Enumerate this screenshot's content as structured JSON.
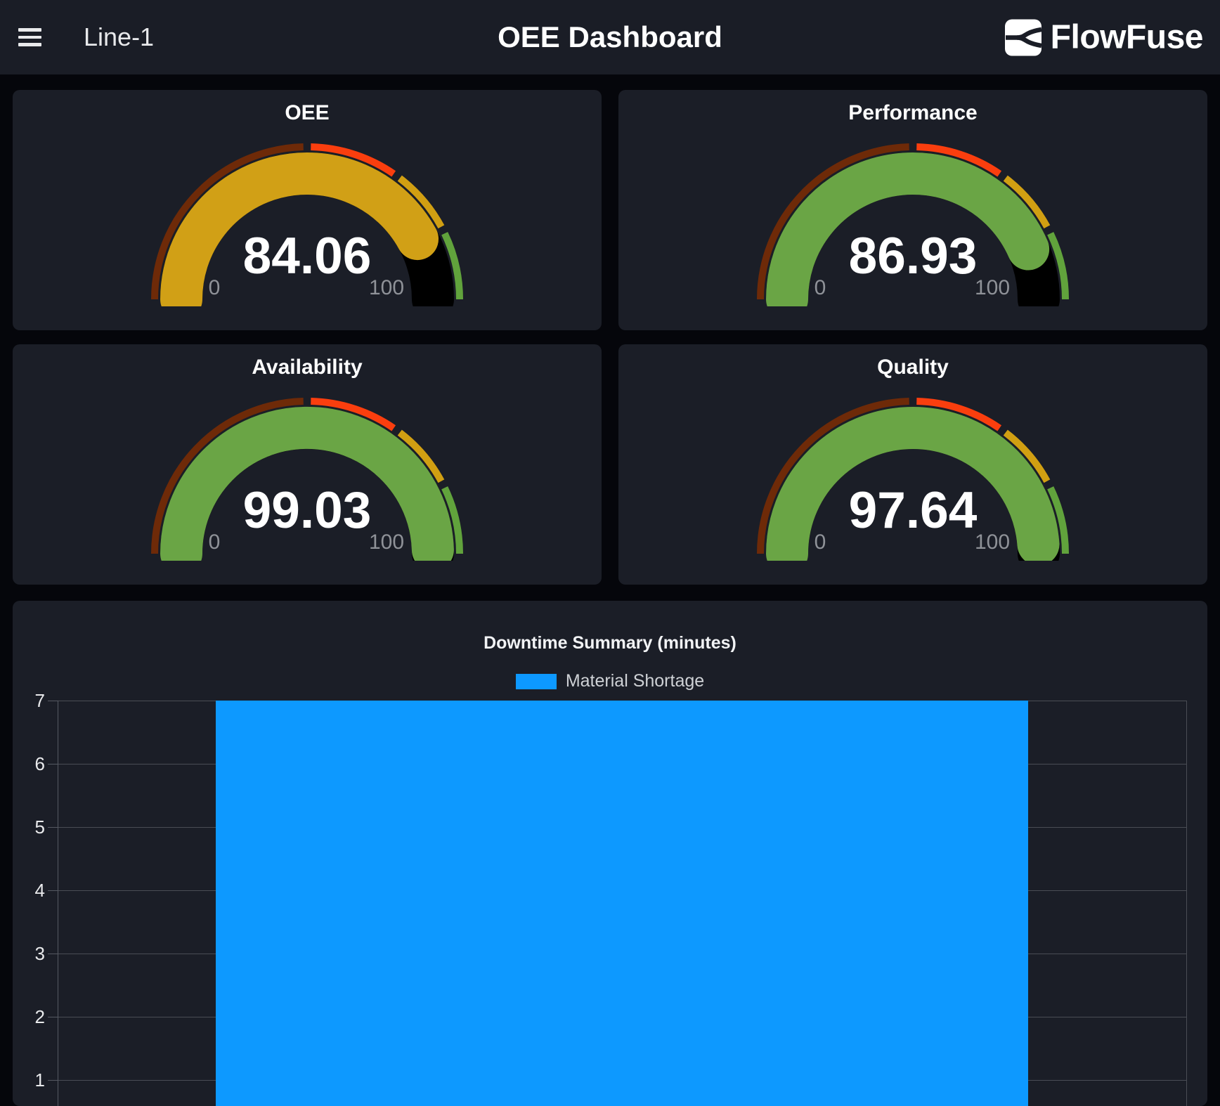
{
  "header": {
    "nav_label": "Line-1",
    "title": "OEE Dashboard",
    "brand": "FlowFuse"
  },
  "gauge_config": {
    "min": 0,
    "max": 100,
    "min_label": "0",
    "max_label": "100",
    "track_color": "#000000",
    "label_color": "#8f9298",
    "segments": [
      {
        "from": 0,
        "to": 50,
        "color": "#6e2a08"
      },
      {
        "from": 50,
        "to": 70,
        "color": "#fa3e0e"
      },
      {
        "from": 70,
        "to": 85,
        "color": "#d19f12"
      },
      {
        "from": 85,
        "to": 100,
        "color": "#61a33c"
      }
    ]
  },
  "gauges": [
    {
      "title": "OEE",
      "value": 84.06,
      "display": "84.06",
      "arc_color": "#d1a016"
    },
    {
      "title": "Performance",
      "value": 86.93,
      "display": "86.93",
      "arc_color": "#6aa545"
    },
    {
      "title": "Availability",
      "value": 99.03,
      "display": "99.03",
      "arc_color": "#6aa545"
    },
    {
      "title": "Quality",
      "value": 97.64,
      "display": "97.64",
      "arc_color": "#6aa545"
    }
  ],
  "chart_data": {
    "type": "bar",
    "title": "Downtime Summary (minutes)",
    "categories": [
      ""
    ],
    "series": [
      {
        "name": "Material Shortage",
        "color": "#0d99ff",
        "values": [
          7
        ]
      }
    ],
    "ylim": [
      0,
      7
    ],
    "y_ticks": [
      7,
      6,
      5,
      4,
      3,
      2,
      1
    ],
    "grid": true,
    "grid_color": "#4a4d55",
    "legend_position": "top"
  }
}
